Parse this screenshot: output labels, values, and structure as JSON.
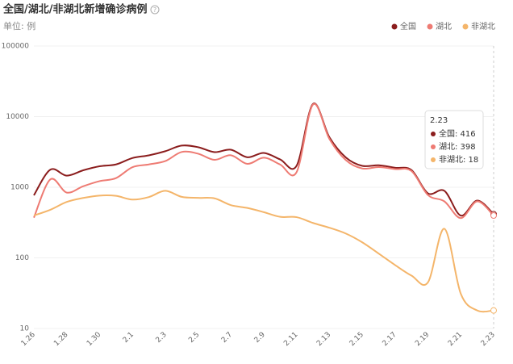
{
  "chart_data": {
    "type": "line",
    "title": "全国/湖北/非湖北新增确诊病例",
    "subtitle": "单位: 例",
    "log_scale": true,
    "grid": true,
    "legend_position": "top-right",
    "categories": [
      "1.26",
      null,
      "1.28",
      null,
      "1.30",
      null,
      "2.1",
      null,
      "2.3",
      null,
      "2.5",
      null,
      "2.7",
      null,
      "2.9",
      null,
      "2.11",
      null,
      "2.13",
      null,
      "2.15",
      null,
      "2.17",
      null,
      "2.19",
      null,
      "2.21",
      null,
      "2.23"
    ],
    "series": [
      {
        "name": "全国",
        "color": "#8b1d1d",
        "values": [
          769,
          1771,
          1459,
          1737,
          1982,
          2102,
          2590,
          2829,
          3235,
          3887,
          3694,
          3143,
          3399,
          2656,
          3062,
          2478,
          2015,
          15152,
          5090,
          2641,
          2009,
          2048,
          1886,
          1749,
          820,
          889,
          397,
          648,
          416
        ]
      },
      {
        "name": "湖北",
        "color": "#ee7b73",
        "values": [
          371,
          1291,
          840,
          1032,
          1220,
          1347,
          1921,
          2103,
          2345,
          3156,
          2987,
          2447,
          2841,
          2147,
          2618,
          2097,
          1638,
          14840,
          4823,
          2420,
          1843,
          1933,
          1807,
          1693,
          775,
          631,
          366,
          630,
          398
        ]
      },
      {
        "name": "非湖北",
        "color": "#f4b56a",
        "values": [
          398,
          480,
          619,
          705,
          762,
          755,
          669,
          726,
          890,
          731,
          707,
          696,
          558,
          509,
          444,
          381,
          377,
          312,
          267,
          221,
          166,
          115,
          79,
          56,
          45,
          258,
          31,
          18,
          18
        ]
      }
    ],
    "ylim": [
      10,
      100000
    ],
    "yticks": [
      10,
      100,
      1000,
      10000,
      100000
    ],
    "tooltip": {
      "title": "2.23",
      "lines": [
        "全国: 416",
        "湖北: 398",
        "非湖北: 18"
      ]
    }
  }
}
